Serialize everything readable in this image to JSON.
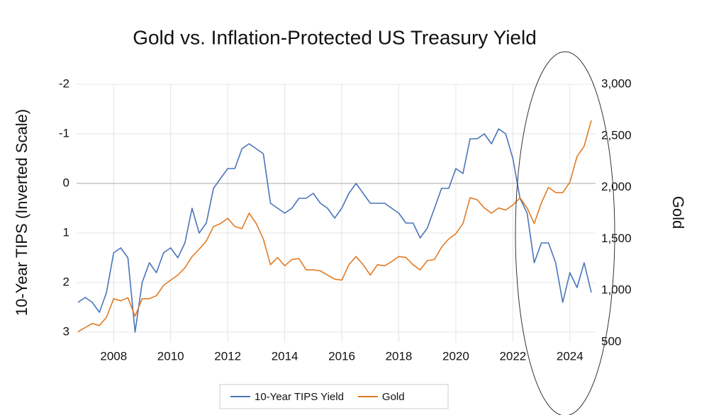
{
  "chart_data": {
    "type": "line",
    "title": "Gold vs. Inflation-Protected US Treasury Yield",
    "y_label": "10-Year TIPS (Inverted Scale)",
    "y2_label": "Gold",
    "x": [
      2006.75,
      2007,
      2007.25,
      2007.5,
      2007.75,
      2008,
      2008.25,
      2008.5,
      2008.75,
      2009,
      2009.25,
      2009.5,
      2009.75,
      2010,
      2010.25,
      2010.5,
      2010.75,
      2011,
      2011.25,
      2011.5,
      2011.75,
      2012,
      2012.25,
      2012.5,
      2012.75,
      2013,
      2013.25,
      2013.5,
      2013.75,
      2014,
      2014.25,
      2014.5,
      2014.75,
      2015,
      2015.25,
      2015.5,
      2015.75,
      2016,
      2016.25,
      2016.5,
      2016.75,
      2017,
      2017.25,
      2017.5,
      2017.75,
      2018,
      2018.25,
      2018.5,
      2018.75,
      2019,
      2019.25,
      2019.5,
      2019.75,
      2020,
      2020.25,
      2020.5,
      2020.75,
      2021,
      2021.25,
      2021.5,
      2021.75,
      2022,
      2022.25,
      2022.5,
      2022.75,
      2023,
      2023.25,
      2023.5,
      2023.75,
      2024,
      2024.25,
      2024.5,
      2024.75
    ],
    "series": [
      {
        "name": "10-Year TIPS Yield",
        "color": "#4a74b8",
        "axis": "y",
        "values": [
          2.4,
          2.3,
          2.4,
          2.6,
          2.2,
          1.4,
          1.3,
          1.5,
          3.0,
          2.0,
          1.6,
          1.8,
          1.4,
          1.3,
          1.5,
          1.2,
          0.5,
          1.0,
          0.8,
          0.1,
          -0.1,
          -0.3,
          -0.3,
          -0.7,
          -0.8,
          -0.7,
          -0.6,
          0.4,
          0.5,
          0.6,
          0.5,
          0.3,
          0.3,
          0.2,
          0.4,
          0.5,
          0.7,
          0.5,
          0.2,
          0.0,
          0.2,
          0.4,
          0.4,
          0.4,
          0.5,
          0.6,
          0.8,
          0.8,
          1.1,
          0.9,
          0.5,
          0.1,
          0.1,
          -0.3,
          -0.2,
          -0.9,
          -0.9,
          -1.0,
          -0.8,
          -1.1,
          -1.0,
          -0.5,
          0.3,
          0.6,
          1.6,
          1.2,
          1.2,
          1.6,
          2.4,
          1.8,
          2.1,
          1.6,
          2.2
        ]
      },
      {
        "name": "Gold",
        "color": "#e07b25",
        "axis": "y2",
        "values": [
          600,
          640,
          680,
          660,
          740,
          920,
          900,
          930,
          750,
          920,
          920,
          950,
          1050,
          1100,
          1150,
          1220,
          1330,
          1400,
          1480,
          1620,
          1650,
          1700,
          1620,
          1600,
          1750,
          1650,
          1500,
          1250,
          1320,
          1240,
          1300,
          1310,
          1200,
          1200,
          1190,
          1150,
          1110,
          1100,
          1250,
          1330,
          1250,
          1150,
          1250,
          1240,
          1280,
          1330,
          1320,
          1250,
          1200,
          1290,
          1300,
          1420,
          1500,
          1550,
          1650,
          1900,
          1880,
          1800,
          1750,
          1800,
          1780,
          1830,
          1900,
          1800,
          1650,
          1850,
          2000,
          1950,
          1950,
          2050,
          2300,
          2400,
          2650
        ]
      }
    ],
    "xlim": [
      2006.7,
      2024.9
    ],
    "xticks": [
      2008,
      2010,
      2012,
      2014,
      2016,
      2018,
      2020,
      2022,
      2024
    ],
    "ylim": [
      -2,
      3.2
    ],
    "y_inverted": true,
    "yticks": [
      -2,
      -1,
      0,
      1,
      2,
      3
    ],
    "y2lim": [
      500,
      3000
    ],
    "y2ticks": [
      {
        "value": 500,
        "label": "500"
      },
      {
        "value": 1000,
        "label": "1,000"
      },
      {
        "value": 1500,
        "label": "1,500"
      },
      {
        "value": 2000,
        "label": "2,000"
      },
      {
        "value": 2500,
        "label": "2,500"
      },
      {
        "value": 3000,
        "label": "3,000"
      }
    ],
    "grid": true
  }
}
